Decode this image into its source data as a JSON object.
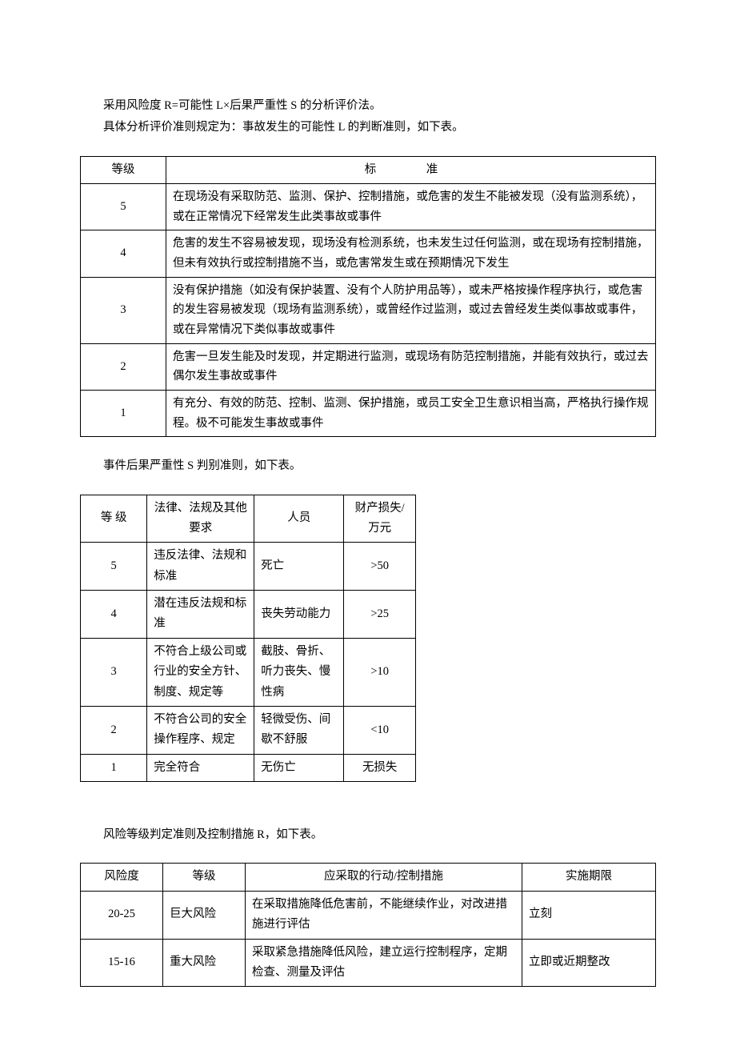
{
  "intro": {
    "line1": "采用风险度 R=可能性 L×后果严重性 S  的分析评价法。",
    "line2": "具体分析评价准则规定为：事故发生的可能性 L 的判断准则，如下表。"
  },
  "table1": {
    "header_level": "等级",
    "header_std": "标　准",
    "rows": [
      {
        "level": "5",
        "std": "在现场没有采取防范、监测、保护、控制措施，或危害的发生不能被发现（没有监测系统），或在正常情况下经常发生此类事故或事件"
      },
      {
        "level": "4",
        "std": "危害的发生不容易被发现，现场没有检测系统，也未发生过任何监测，或在现场有控制措施，但未有效执行或控制措施不当，或危害常发生或在预期情况下发生"
      },
      {
        "level": "3",
        "std": "没有保护措施（如没有保护装置、没有个人防护用品等），或未严格按操作程序执行，或危害的发生容易被发现（现场有监测系统），或曾经作过监测，或过去曾经发生类似事故或事件，或在异常情况下类似事故或事件"
      },
      {
        "level": "2",
        "std": "危害一旦发生能及时发现，并定期进行监测，或现场有防范控制措施，并能有效执行，或过去偶尔发生事故或事件"
      },
      {
        "level": "1",
        "std": "有充分、有效的防范、控制、监测、保护措施，或员工安全卫生意识相当高，严格执行操作规程。极不可能发生事故或事件"
      }
    ]
  },
  "mid1": "事件后果严重性 S 判别准则，如下表。",
  "table2": {
    "headers": {
      "c1": "等  级",
      "c2": "法律、法规及其他要求",
      "c3": "人员",
      "c4": "财产损失/万元"
    },
    "rows": [
      {
        "c1": "5",
        "c2": "违反法律、法规和标准",
        "c3": "死亡",
        "c4": ">50"
      },
      {
        "c1": "4",
        "c2": "潜在违反法规和标准",
        "c3": "丧失劳动能力",
        "c4": ">25"
      },
      {
        "c1": "3",
        "c2": "不符合上级公司或行业的安全方针、制度、规定等",
        "c3": "截肢、骨折、听力丧失、慢性病",
        "c4": ">10"
      },
      {
        "c1": "2",
        "c2": "不符合公司的安全操作程序、规定",
        "c3": "轻微受伤、间歇不舒服",
        "c4": "<10"
      },
      {
        "c1": "1",
        "c2": "完全符合",
        "c3": "无伤亡",
        "c4": "无损失"
      }
    ]
  },
  "mid2": "风险等级判定准则及控制措施 R，如下表。",
  "table3": {
    "headers": {
      "c1": "风险度",
      "c2": "等级",
      "c3": "应采取的行动/控制措施",
      "c4": "实施期限"
    },
    "rows": [
      {
        "c1": "20-25",
        "c2": "巨大风险",
        "c3": "在采取措施降低危害前，不能继续作业，对改进措施进行评估",
        "c4": "立刻"
      },
      {
        "c1": "15-16",
        "c2": "重大风险",
        "c3": "采取紧急措施降低风险，建立运行控制程序，定期检查、测量及评估",
        "c4": "立即或近期整改"
      }
    ]
  }
}
